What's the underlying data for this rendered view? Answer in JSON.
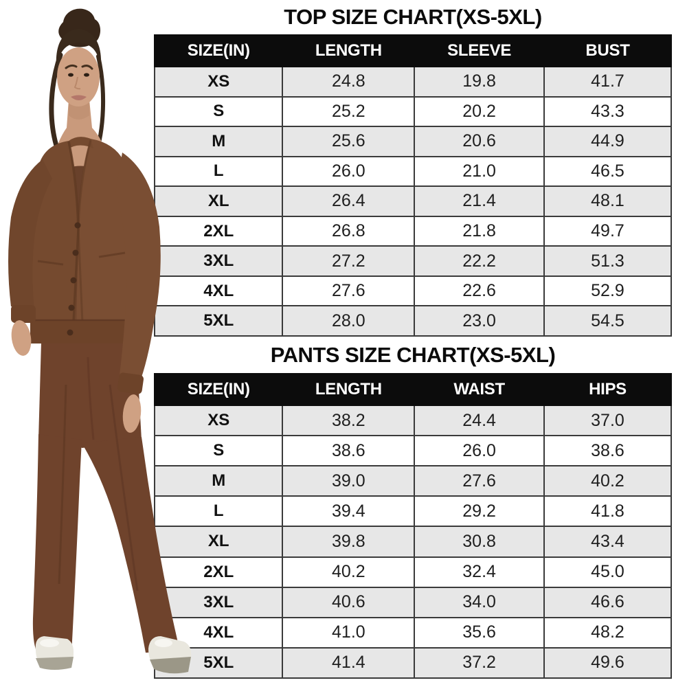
{
  "hero": {
    "alt": "Model wearing a brown knit cardigan two-piece lounge set with wide-leg pants and cream sneakers",
    "colors": {
      "cardigan_brown": "#754a2f",
      "cami_brown": "#69412b",
      "pants_brown": "#6f432c",
      "hair_brown": "#3a2a1c",
      "skin": "#cfa183",
      "shoe_cream": "#e9e7de",
      "shoe_sole": "#a8a495"
    }
  },
  "style": {
    "header_bg": "#0c0c0c",
    "header_text": "#ffffff",
    "row_stripe_gray": "#e7e7e7",
    "row_white": "#ffffff",
    "grid_border": "#3a3a3a"
  },
  "chart_data": [
    {
      "type": "table",
      "title": "TOP SIZE CHART(XS-5XL)",
      "columns": [
        "SIZE(IN)",
        "LENGTH",
        "SLEEVE",
        "BUST"
      ],
      "rows": [
        [
          "XS",
          "24.8",
          "19.8",
          "41.7"
        ],
        [
          "S",
          "25.2",
          "20.2",
          "43.3"
        ],
        [
          "M",
          "25.6",
          "20.6",
          "44.9"
        ],
        [
          "L",
          "26.0",
          "21.0",
          "46.5"
        ],
        [
          "XL",
          "26.4",
          "21.4",
          "48.1"
        ],
        [
          "2XL",
          "26.8",
          "21.8",
          "49.7"
        ],
        [
          "3XL",
          "27.2",
          "22.2",
          "51.3"
        ],
        [
          "4XL",
          "27.6",
          "22.6",
          "52.9"
        ],
        [
          "5XL",
          "28.0",
          "23.0",
          "54.5"
        ]
      ]
    },
    {
      "type": "table",
      "title": "PANTS SIZE CHART(XS-5XL)",
      "columns": [
        "SIZE(IN)",
        "LENGTH",
        "WAIST",
        "HIPS"
      ],
      "rows": [
        [
          "XS",
          "38.2",
          "24.4",
          "37.0"
        ],
        [
          "S",
          "38.6",
          "26.0",
          "38.6"
        ],
        [
          "M",
          "39.0",
          "27.6",
          "40.2"
        ],
        [
          "L",
          "39.4",
          "29.2",
          "41.8"
        ],
        [
          "XL",
          "39.8",
          "30.8",
          "43.4"
        ],
        [
          "2XL",
          "40.2",
          "32.4",
          "45.0"
        ],
        [
          "3XL",
          "40.6",
          "34.0",
          "46.6"
        ],
        [
          "4XL",
          "41.0",
          "35.6",
          "48.2"
        ],
        [
          "5XL",
          "41.4",
          "37.2",
          "49.6"
        ]
      ]
    }
  ]
}
